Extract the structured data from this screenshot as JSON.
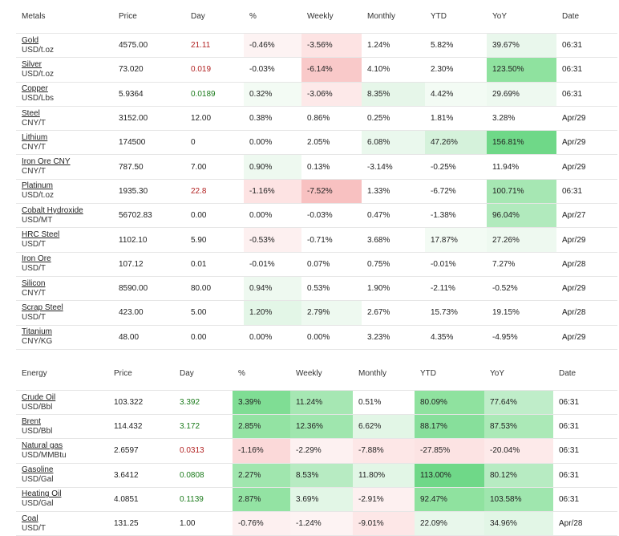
{
  "colors": {
    "pos_text": "#1a7a1a",
    "neg_text": "#b22222"
  },
  "metals": {
    "headers": [
      "Metals",
      "Price",
      "Day",
      "%",
      "Weekly",
      "Monthly",
      "YTD",
      "YoY",
      "Date"
    ],
    "rows": [
      {
        "name": "Gold",
        "unit": "USD/t.oz",
        "price": "4575.00",
        "day": "21.11",
        "day_dir": "neg",
        "pct": "-0.46%",
        "weekly": "-3.56%",
        "monthly": "1.24%",
        "ytd": "5.82%",
        "yoy": "39.67%",
        "date": "06:31",
        "bg": {
          "pct": "#fdf3f3",
          "weekly": "#fde3e3",
          "yoy": "#e9f7ec"
        }
      },
      {
        "name": "Silver",
        "unit": "USD/t.oz",
        "price": "73.020",
        "day": "0.019",
        "day_dir": "neg",
        "pct": "-0.03%",
        "weekly": "-6.14%",
        "monthly": "4.10%",
        "ytd": "2.30%",
        "yoy": "123.50%",
        "date": "06:31",
        "bg": {
          "weekly": "#f9c9c9",
          "yoy": "#8fe29f"
        }
      },
      {
        "name": "Copper",
        "unit": "USD/Lbs",
        "price": "5.9364",
        "day": "0.0189",
        "day_dir": "pos",
        "pct": "0.32%",
        "weekly": "-3.06%",
        "monthly": "8.35%",
        "ytd": "4.42%",
        "yoy": "29.69%",
        "date": "06:31",
        "bg": {
          "pct": "#f3fbf4",
          "weekly": "#fde9e9",
          "monthly": "#e6f6e9",
          "ytd": "#f3fbf4",
          "yoy": "#eef9f0"
        }
      },
      {
        "name": "Steel",
        "unit": "CNY/T",
        "price": "3152.00",
        "day": "12.00",
        "day_dir": "",
        "pct": "0.38%",
        "weekly": "0.86%",
        "monthly": "0.25%",
        "ytd": "1.81%",
        "yoy": "3.28%",
        "date": "Apr/29",
        "bg": {}
      },
      {
        "name": "Lithium",
        "unit": "CNY/T",
        "price": "174500",
        "day": "0",
        "day_dir": "",
        "pct": "0.00%",
        "weekly": "2.05%",
        "monthly": "6.08%",
        "ytd": "47.26%",
        "yoy": "156.81%",
        "date": "Apr/29",
        "bg": {
          "monthly": "#eaf8ed",
          "ytd": "#d5f2db",
          "yoy": "#6fd888"
        }
      },
      {
        "name": "Iron Ore CNY",
        "unit": "CNY/T",
        "price": "787.50",
        "day": "7.00",
        "day_dir": "",
        "pct": "0.90%",
        "weekly": "0.13%",
        "monthly": "-3.14%",
        "ytd": "-0.25%",
        "yoy": "11.94%",
        "date": "Apr/29",
        "bg": {
          "pct": "#eef9f0"
        }
      },
      {
        "name": "Platinum",
        "unit": "USD/t.oz",
        "price": "1935.30",
        "day": "22.8",
        "day_dir": "neg",
        "pct": "-1.16%",
        "weekly": "-7.52%",
        "monthly": "1.33%",
        "ytd": "-6.72%",
        "yoy": "100.71%",
        "date": "06:31",
        "bg": {
          "pct": "#fde3e3",
          "weekly": "#f8c1c1",
          "yoy": "#a6e7b3"
        }
      },
      {
        "name": "Cobalt Hydroxide",
        "unit": "USD/MT",
        "price": "56702.83",
        "day": "0.00",
        "day_dir": "",
        "pct": "0.00%",
        "weekly": "-0.03%",
        "monthly": "0.47%",
        "ytd": "-1.38%",
        "yoy": "96.04%",
        "date": "Apr/27",
        "bg": {
          "yoy": "#b1eabd"
        }
      },
      {
        "name": "HRC Steel",
        "unit": "USD/T",
        "price": "1102.10",
        "day": "5.90",
        "day_dir": "",
        "pct": "-0.53%",
        "weekly": "-0.71%",
        "monthly": "3.68%",
        "ytd": "17.87%",
        "yoy": "27.26%",
        "date": "Apr/29",
        "bg": {
          "pct": "#fdf0f0",
          "ytd": "#f3fbf4",
          "yoy": "#eef9f0"
        }
      },
      {
        "name": "Iron Ore",
        "unit": "USD/T",
        "price": "107.12",
        "day": "0.01",
        "day_dir": "",
        "pct": "-0.01%",
        "weekly": "0.07%",
        "monthly": "0.75%",
        "ytd": "-0.01%",
        "yoy": "7.27%",
        "date": "Apr/28",
        "bg": {}
      },
      {
        "name": "Silicon",
        "unit": "CNY/T",
        "price": "8590.00",
        "day": "80.00",
        "day_dir": "",
        "pct": "0.94%",
        "weekly": "0.53%",
        "monthly": "1.90%",
        "ytd": "-2.11%",
        "yoy": "-0.52%",
        "date": "Apr/29",
        "bg": {
          "pct": "#eef9f0"
        }
      },
      {
        "name": "Scrap Steel",
        "unit": "USD/T",
        "price": "423.00",
        "day": "5.00",
        "day_dir": "",
        "pct": "1.20%",
        "weekly": "2.79%",
        "monthly": "2.67%",
        "ytd": "15.73%",
        "yoy": "19.15%",
        "date": "Apr/28",
        "bg": {
          "pct": "#e3f6e7",
          "weekly": "#eef9f0"
        }
      },
      {
        "name": "Titanium",
        "unit": "CNY/KG",
        "price": "48.00",
        "day": "0.00",
        "day_dir": "",
        "pct": "0.00%",
        "weekly": "0.00%",
        "monthly": "3.23%",
        "ytd": "4.35%",
        "yoy": "-4.95%",
        "date": "Apr/29",
        "bg": {}
      }
    ]
  },
  "energy": {
    "headers": [
      "Energy",
      "Price",
      "Day",
      "%",
      "Weekly",
      "Monthly",
      "YTD",
      "YoY",
      "Date"
    ],
    "rows": [
      {
        "name": "Crude Oil",
        "unit": "USD/Bbl",
        "price": "103.322",
        "day": "3.392",
        "day_dir": "pos",
        "pct": "3.39%",
        "weekly": "11.24%",
        "monthly": "0.51%",
        "ytd": "80.09%",
        "yoy": "77.64%",
        "date": "06:31",
        "bg": {
          "pct": "#7fdd94",
          "weekly": "#a6e7b3",
          "ytd": "#8fe29f",
          "yoy": "#bfedc9"
        }
      },
      {
        "name": "Brent",
        "unit": "USD/Bbl",
        "price": "114.432",
        "day": "3.172",
        "day_dir": "pos",
        "pct": "2.85%",
        "weekly": "12.36%",
        "monthly": "6.62%",
        "ytd": "88.17%",
        "yoy": "87.53%",
        "date": "06:31",
        "bg": {
          "pct": "#93e3a3",
          "weekly": "#9fe6ae",
          "monthly": "#e2f6e6",
          "ytd": "#87df9b",
          "yoy": "#abe9b7"
        }
      },
      {
        "name": "Natural gas",
        "unit": "USD/MMBtu",
        "price": "2.6597",
        "day": "0.0313",
        "day_dir": "neg",
        "pct": "-1.16%",
        "weekly": "-2.29%",
        "monthly": "-7.88%",
        "ytd": "-27.85%",
        "yoy": "-20.04%",
        "date": "06:31",
        "bg": {
          "pct": "#fbd9d9",
          "weekly": "#fdf1f1",
          "monthly": "#fde7e7",
          "ytd": "#fce3e3",
          "yoy": "#fdeaea"
        }
      },
      {
        "name": "Gasoline",
        "unit": "USD/Gal",
        "price": "3.6412",
        "day": "0.0808",
        "day_dir": "pos",
        "pct": "2.27%",
        "weekly": "8.53%",
        "monthly": "11.80%",
        "ytd": "113.00%",
        "yoy": "80.12%",
        "date": "06:31",
        "bg": {
          "pct": "#a0e6ae",
          "weekly": "#b7ebc2",
          "monthly": "#e2f6e6",
          "ytd": "#6fd888",
          "yoy": "#b7ebc2"
        }
      },
      {
        "name": "Heating Oil",
        "unit": "USD/Gal",
        "price": "4.0851",
        "day": "0.1139",
        "day_dir": "pos",
        "pct": "2.87%",
        "weekly": "3.69%",
        "monthly": "-2.91%",
        "ytd": "92.47%",
        "yoy": "103.58%",
        "date": "06:31",
        "bg": {
          "pct": "#93e3a3",
          "weekly": "#e2f6e6",
          "monthly": "#fdf0f0",
          "ytd": "#8fe29f",
          "yoy": "#9fe6ae"
        }
      },
      {
        "name": "Coal",
        "unit": "USD/T",
        "price": "131.25",
        "day": "1.00",
        "day_dir": "",
        "pct": "-0.76%",
        "weekly": "-1.24%",
        "monthly": "-9.01%",
        "ytd": "22.09%",
        "yoy": "34.96%",
        "date": "Apr/28",
        "bg": {
          "pct": "#fdf0f0",
          "weekly": "#fdf3f3",
          "monthly": "#fde7e7",
          "ytd": "#e8f7eb",
          "yoy": "#e2f6e6"
        }
      }
    ]
  }
}
